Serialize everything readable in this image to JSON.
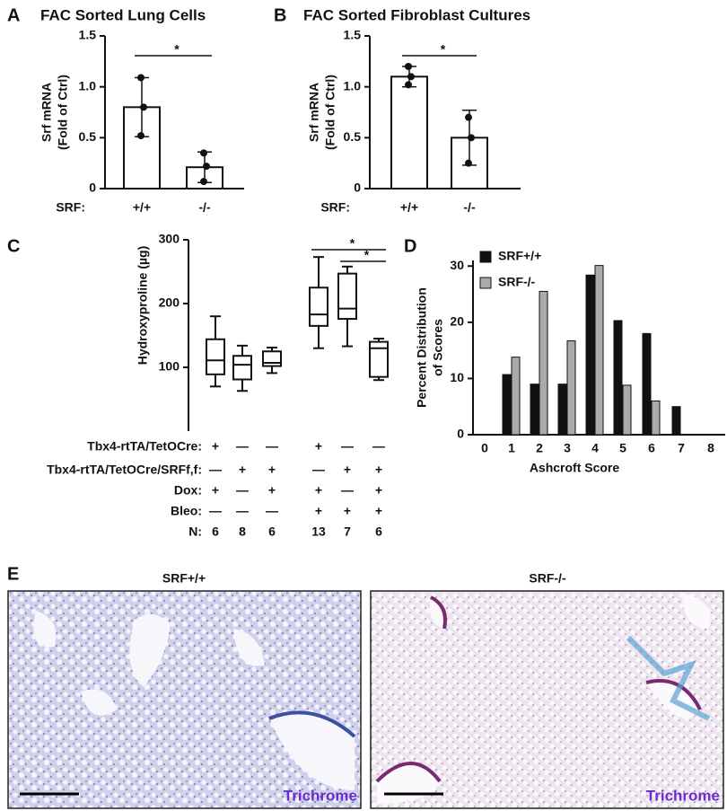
{
  "chart_data": [
    {
      "type": "bar",
      "panel_label": "A",
      "title": "FAC Sorted Lung Cells",
      "y_label": [
        "Srf mRNA",
        "(Fold of Ctrl)"
      ],
      "x_prefix": "SRF:",
      "categories": [
        "+/+",
        "-/-"
      ],
      "values": [
        0.8,
        0.21
      ],
      "errors": [
        0.29,
        0.15
      ],
      "points": [
        [
          1.09,
          0.8,
          0.52
        ],
        [
          0.35,
          0.22,
          0.07
        ]
      ],
      "ylim": [
        0,
        1.5
      ],
      "yticks": [
        0,
        0.5,
        {
          "value": 1,
          "label": "1.0"
        },
        1.5
      ],
      "significance": [
        {
          "label": "*",
          "between": [
            0,
            1
          ]
        }
      ]
    },
    {
      "type": "bar",
      "panel_label": "B",
      "title": "FAC Sorted Fibroblast Cultures",
      "y_label": [
        "Srf mRNA",
        "(Fold of Ctrl)"
      ],
      "x_prefix": "SRF:",
      "categories": [
        "+/+",
        "-/-"
      ],
      "values": [
        1.1,
        0.5
      ],
      "errors": [
        0.1,
        0.27
      ],
      "points": [
        [
          1.2,
          1.1,
          1.02
        ],
        [
          0.7,
          0.5,
          0.25
        ]
      ],
      "ylim": [
        0,
        1.5
      ],
      "yticks": [
        0,
        0.5,
        {
          "value": 1,
          "label": "1.0"
        },
        1.5
      ],
      "significance": [
        {
          "label": "*",
          "between": [
            0,
            1
          ]
        }
      ]
    },
    {
      "type": "box",
      "panel_label": "C",
      "y_label": "Hydroxyproline (µg)",
      "ylim": [
        0,
        300
      ],
      "yticks": [
        100,
        200,
        300
      ],
      "boxes": [
        {
          "min": 70,
          "q1": 89,
          "median": 111,
          "q3": 144,
          "max": 180
        },
        {
          "min": 63,
          "q1": 81,
          "median": 104,
          "q3": 118,
          "max": 134
        },
        {
          "min": 91,
          "q1": 102,
          "median": 107,
          "q3": 125,
          "max": 131
        },
        {
          "min": 130,
          "q1": 165,
          "median": 183,
          "q3": 225,
          "max": 273
        },
        {
          "min": 133,
          "q1": 176,
          "median": 192,
          "q3": 247,
          "max": 258
        },
        {
          "min": 80,
          "q1": 85,
          "median": 130,
          "q3": 140,
          "max": 145
        }
      ],
      "table": [
        {
          "label": "Tbx4-rtTA/TetOCre:",
          "cells": [
            "+",
            "—",
            "—",
            "+",
            "—",
            "—"
          ]
        },
        {
          "label": "Tbx4-rtTA/TetOCre/SRFf,f:",
          "cells": [
            "—",
            "+",
            "+",
            "—",
            "+",
            "+"
          ]
        },
        {
          "label": "Dox:",
          "cells": [
            "+",
            "—",
            "+",
            "+",
            "—",
            "+"
          ]
        },
        {
          "label": "Bleo:",
          "cells": [
            "—",
            "—",
            "—",
            "+",
            "+",
            "+"
          ]
        },
        {
          "label": "N:",
          "cells": [
            6,
            8,
            6,
            13,
            7,
            6
          ]
        }
      ],
      "significance": [
        {
          "label": "*",
          "between": [
            3,
            5
          ]
        },
        {
          "label": "*",
          "between": [
            4,
            5
          ]
        }
      ]
    },
    {
      "type": "grouped_bar",
      "panel_label": "D",
      "x_label": "Ashcroft Score",
      "y_label": [
        "Percent Distribution",
        "of Scores"
      ],
      "categories": [
        "0",
        "1",
        "2",
        "3",
        "4",
        "5",
        "6",
        "7",
        "8"
      ],
      "series": [
        {
          "name": "SRF+/+",
          "color": "#111111",
          "values": [
            0,
            10.7,
            9,
            9,
            28.4,
            20.3,
            18,
            5,
            0
          ]
        },
        {
          "name": "SRF-/-",
          "color": "#aaaaaa",
          "values": [
            0,
            13.8,
            25.5,
            16.7,
            30.1,
            8.8,
            6,
            0,
            0
          ]
        }
      ],
      "ylim": [
        0,
        31
      ],
      "yticks": [
        0,
        10,
        20,
        30
      ],
      "legend": "top-left"
    }
  ],
  "panel_e": {
    "label": "E",
    "images": [
      {
        "title": "SRF+/+",
        "stain": "Trichrome"
      },
      {
        "title": "SRF-/-",
        "stain": "Trichrome"
      }
    ]
  }
}
